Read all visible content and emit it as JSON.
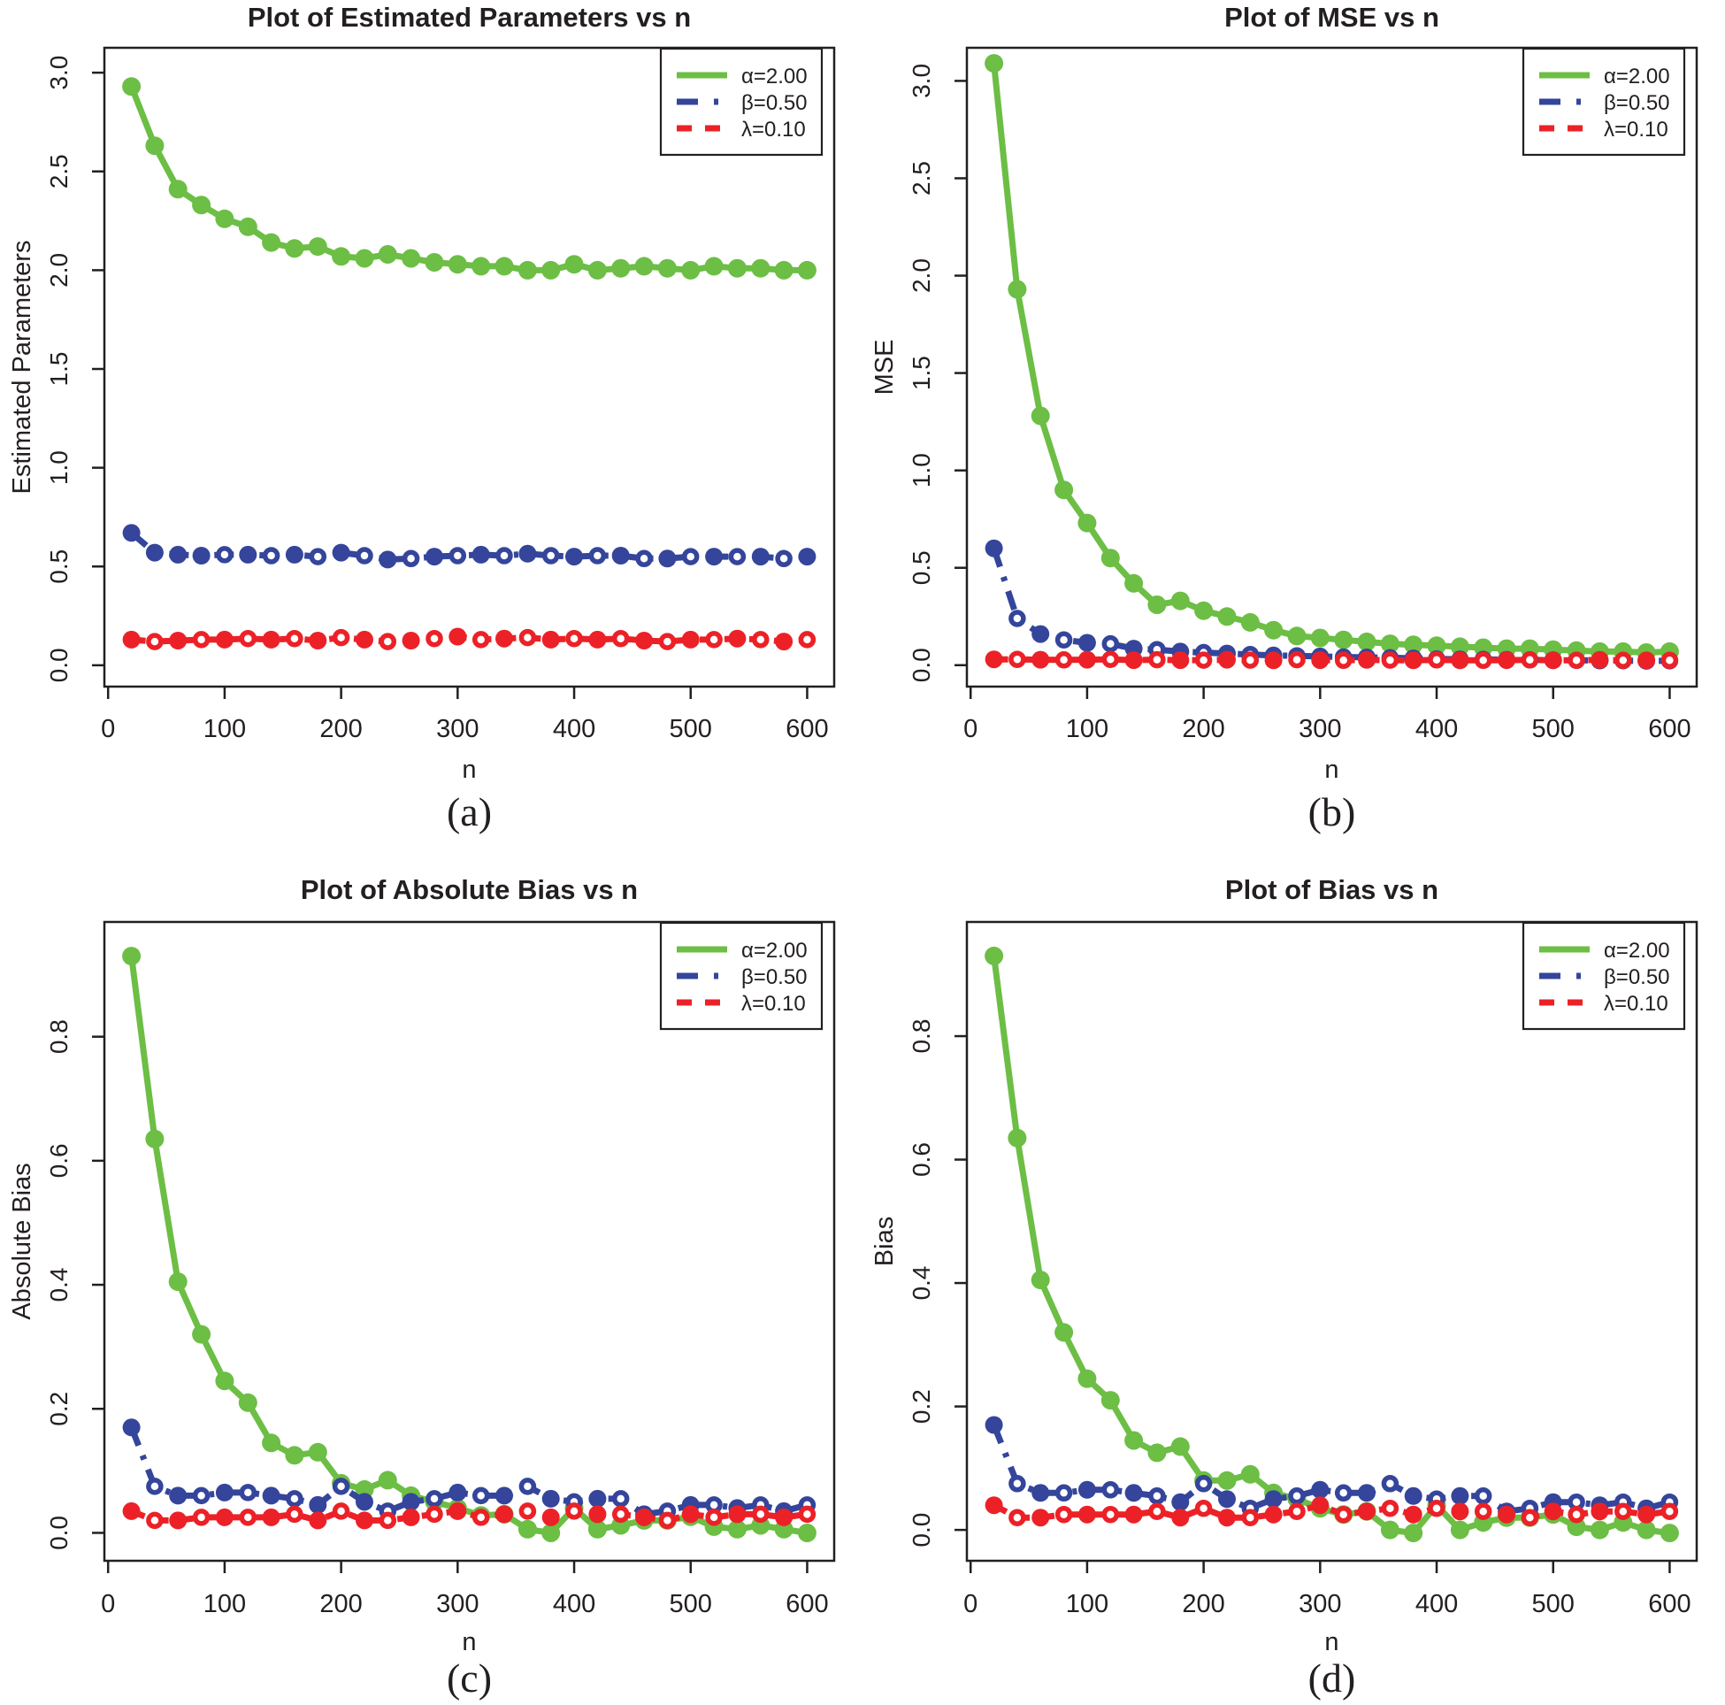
{
  "figure": {
    "background": "#ffffff",
    "panel_count": 4
  },
  "styles": {
    "colors": {
      "alpha": "#6CBE45",
      "beta": "#34459B",
      "lambda": "#EC2127",
      "axis": "#231F20",
      "text": "#231F20",
      "panel_bg": "#ffffff"
    },
    "dash": {
      "alpha": "",
      "beta": "22 12 5 12",
      "lambda": "16 12"
    },
    "legend_dash": {
      "alpha": "",
      "beta": "24 18 5 60",
      "lambda": "17 15 17 60"
    }
  },
  "legend": {
    "entries": [
      {
        "series": "alpha",
        "label": "α=2.00"
      },
      {
        "series": "beta",
        "label": "β=0.50"
      },
      {
        "series": "lambda",
        "label": "λ=0.10"
      }
    ]
  },
  "chart_data": {
    "type": "line",
    "x_label": "n",
    "x_values": [
      20,
      40,
      60,
      80,
      100,
      120,
      140,
      160,
      180,
      200,
      220,
      240,
      260,
      280,
      300,
      320,
      340,
      360,
      380,
      400,
      420,
      440,
      460,
      480,
      500,
      520,
      540,
      560,
      580,
      600
    ],
    "x_ticks": [
      0,
      100,
      200,
      300,
      400,
      500,
      600
    ],
    "xlim": [
      -3.2,
      623.2
    ],
    "grid": false,
    "legend_position": "top-right",
    "charts": [
      {
        "id": "a",
        "title": "Plot of Estimated Parameters vs n",
        "ylabel": "Estimated Parameters",
        "caption": "(a)",
        "ylim": [
          -0.108,
          3.126
        ],
        "yticks": [
          0,
          0.5,
          1,
          1.5,
          2,
          2.5,
          3
        ],
        "ytick_labels": [
          "0.0",
          "0.5",
          "1.0",
          "1.5",
          "2.0",
          "2.5",
          "3.0"
        ],
        "series": [
          {
            "name": "alpha",
            "label": "α=2.00",
            "open_markers": "none",
            "values": [
              2.93,
              2.63,
              2.41,
              2.33,
              2.26,
              2.22,
              2.14,
              2.11,
              2.12,
              2.07,
              2.06,
              2.08,
              2.06,
              2.04,
              2.03,
              2.02,
              2.02,
              2.0,
              2.0,
              2.03,
              2.0,
              2.01,
              2.02,
              2.01,
              2.0,
              2.02,
              2.01,
              2.01,
              2.0,
              2.0
            ]
          },
          {
            "name": "beta",
            "label": "β=0.50",
            "open_markers": "even4",
            "values": [
              0.67,
              0.57,
              0.56,
              0.555,
              0.56,
              0.56,
              0.555,
              0.56,
              0.55,
              0.57,
              0.555,
              0.535,
              0.54,
              0.55,
              0.555,
              0.56,
              0.555,
              0.565,
              0.555,
              0.55,
              0.555,
              0.555,
              0.54,
              0.54,
              0.55,
              0.55,
              0.55,
              0.55,
              0.54,
              0.55
            ]
          },
          {
            "name": "lambda",
            "label": "λ=0.10",
            "open_markers": "odd",
            "values": [
              0.13,
              0.12,
              0.125,
              0.13,
              0.13,
              0.135,
              0.13,
              0.135,
              0.125,
              0.14,
              0.13,
              0.12,
              0.125,
              0.135,
              0.145,
              0.13,
              0.135,
              0.14,
              0.13,
              0.135,
              0.13,
              0.135,
              0.125,
              0.12,
              0.13,
              0.13,
              0.135,
              0.13,
              0.12,
              0.13
            ]
          }
        ]
      },
      {
        "id": "b",
        "title": "Plot of MSE vs n",
        "ylabel": "MSE",
        "caption": "(b)",
        "ylim": [
          -0.11,
          3.17
        ],
        "yticks": [
          0,
          0.5,
          1,
          1.5,
          2,
          2.5,
          3
        ],
        "ytick_labels": [
          "0.0",
          "0.5",
          "1.0",
          "1.5",
          "2.0",
          "2.5",
          "3.0"
        ],
        "series": [
          {
            "name": "alpha",
            "label": "α=2.00",
            "open_markers": "none",
            "values": [
              3.09,
              1.93,
              1.28,
              0.9,
              0.73,
              0.55,
              0.42,
              0.31,
              0.33,
              0.28,
              0.25,
              0.22,
              0.18,
              0.15,
              0.14,
              0.13,
              0.12,
              0.11,
              0.105,
              0.1,
              0.095,
              0.09,
              0.085,
              0.085,
              0.08,
              0.075,
              0.07,
              0.07,
              0.065,
              0.07
            ]
          },
          {
            "name": "beta",
            "label": "β=0.50",
            "open_markers": "odd",
            "values": [
              0.6,
              0.24,
              0.16,
              0.13,
              0.115,
              0.11,
              0.085,
              0.08,
              0.07,
              0.065,
              0.06,
              0.055,
              0.05,
              0.048,
              0.045,
              0.042,
              0.04,
              0.038,
              0.035,
              0.032,
              0.03,
              0.03,
              0.028,
              0.027,
              0.026,
              0.025,
              0.024,
              0.023,
              0.022,
              0.022
            ]
          },
          {
            "name": "lambda",
            "label": "λ=0.10",
            "open_markers": "odd",
            "values": [
              0.03,
              0.03,
              0.028,
              0.027,
              0.028,
              0.03,
              0.026,
              0.028,
              0.026,
              0.026,
              0.028,
              0.026,
              0.025,
              0.028,
              0.026,
              0.025,
              0.027,
              0.026,
              0.025,
              0.027,
              0.025,
              0.025,
              0.026,
              0.027,
              0.025,
              0.025,
              0.027,
              0.025,
              0.025,
              0.025
            ]
          }
        ]
      },
      {
        "id": "c",
        "title": "Plot of Absolute Bias vs n",
        "ylabel": "Absolute Bias",
        "caption": "(c)",
        "ylim": [
          -0.045,
          0.985
        ],
        "yticks": [
          0,
          0.2,
          0.4,
          0.6,
          0.8
        ],
        "ytick_labels": [
          "0.0",
          "0.2",
          "0.4",
          "0.6",
          "0.8"
        ],
        "series": [
          {
            "name": "alpha",
            "label": "α=2.00",
            "open_markers": "none",
            "values": [
              0.93,
              0.635,
              0.405,
              0.32,
              0.245,
              0.21,
              0.145,
              0.125,
              0.13,
              0.08,
              0.07,
              0.085,
              0.06,
              0.05,
              0.04,
              0.028,
              0.03,
              0.006,
              0.0,
              0.04,
              0.006,
              0.012,
              0.02,
              0.02,
              0.026,
              0.01,
              0.006,
              0.012,
              0.006,
              0.0
            ]
          },
          {
            "name": "beta",
            "label": "β=0.50",
            "open_markers": "odd",
            "values": [
              0.17,
              0.075,
              0.06,
              0.06,
              0.065,
              0.065,
              0.06,
              0.055,
              0.045,
              0.075,
              0.05,
              0.035,
              0.05,
              0.055,
              0.065,
              0.06,
              0.06,
              0.075,
              0.055,
              0.05,
              0.055,
              0.055,
              0.03,
              0.035,
              0.045,
              0.045,
              0.04,
              0.045,
              0.035,
              0.045
            ]
          },
          {
            "name": "lambda",
            "label": "λ=0.10",
            "open_markers": "odd",
            "values": [
              0.035,
              0.02,
              0.02,
              0.025,
              0.025,
              0.025,
              0.025,
              0.03,
              0.02,
              0.035,
              0.02,
              0.02,
              0.025,
              0.03,
              0.035,
              0.025,
              0.03,
              0.035,
              0.025,
              0.035,
              0.03,
              0.03,
              0.025,
              0.02,
              0.03,
              0.025,
              0.03,
              0.03,
              0.025,
              0.03
            ]
          }
        ]
      },
      {
        "id": "d",
        "title": "Plot of Bias vs n",
        "ylabel": "Bias",
        "caption": "(d)",
        "ylim": [
          -0.05,
          0.985
        ],
        "yticks": [
          0,
          0.2,
          0.4,
          0.6,
          0.8
        ],
        "ytick_labels": [
          "0.0",
          "0.2",
          "0.4",
          "0.6",
          "0.8"
        ],
        "series": [
          {
            "name": "alpha",
            "label": "α=2.00",
            "open_markers": "none",
            "values": [
              0.93,
              0.635,
              0.405,
              0.32,
              0.245,
              0.21,
              0.145,
              0.125,
              0.135,
              0.08,
              0.08,
              0.09,
              0.06,
              0.05,
              0.035,
              0.025,
              0.03,
              0.0,
              -0.005,
              0.04,
              0.0,
              0.012,
              0.02,
              0.02,
              0.025,
              0.005,
              0.0,
              0.012,
              0.0,
              -0.005
            ]
          },
          {
            "name": "beta",
            "label": "β=0.50",
            "open_markers": "odd",
            "values": [
              0.17,
              0.075,
              0.06,
              0.06,
              0.065,
              0.065,
              0.06,
              0.055,
              0.045,
              0.075,
              0.05,
              0.035,
              0.05,
              0.055,
              0.065,
              0.06,
              0.06,
              0.075,
              0.055,
              0.05,
              0.055,
              0.055,
              0.03,
              0.035,
              0.045,
              0.045,
              0.04,
              0.045,
              0.035,
              0.045
            ]
          },
          {
            "name": "lambda",
            "label": "λ=0.10",
            "open_markers": "odd",
            "values": [
              0.04,
              0.02,
              0.02,
              0.025,
              0.025,
              0.025,
              0.025,
              0.03,
              0.02,
              0.035,
              0.02,
              0.02,
              0.025,
              0.03,
              0.04,
              0.025,
              0.03,
              0.035,
              0.025,
              0.035,
              0.03,
              0.03,
              0.025,
              0.02,
              0.03,
              0.025,
              0.03,
              0.03,
              0.025,
              0.03
            ]
          }
        ]
      }
    ]
  }
}
